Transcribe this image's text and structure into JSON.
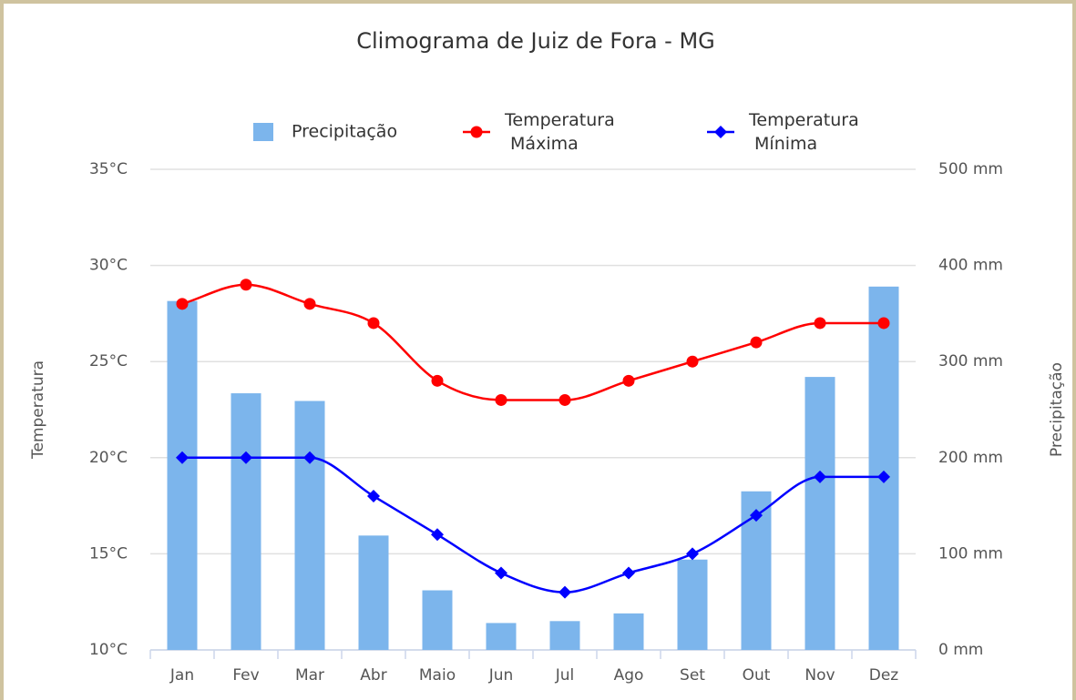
{
  "chart_data": {
    "type": "climograph",
    "title": "Climograma de Juiz de Fora - MG",
    "categories": [
      "Jan",
      "Fev",
      "Mar",
      "Abr",
      "Maio",
      "Jun",
      "Jul",
      "Ago",
      "Set",
      "Out",
      "Nov",
      "Dez"
    ],
    "series": [
      {
        "name": "Precipitação",
        "type": "bar",
        "axis": "y2",
        "color": "#7cb5ec",
        "values": [
          363,
          267,
          259,
          119,
          62,
          28,
          30,
          38,
          94,
          165,
          284,
          378
        ]
      },
      {
        "name": "Temperatura Máxima",
        "type": "line",
        "marker": "circle",
        "color": "#ff0000",
        "values": [
          28,
          29,
          28,
          27,
          24,
          23,
          23,
          24,
          25,
          26,
          27,
          27
        ]
      },
      {
        "name": "Temperatura Mínima",
        "type": "line",
        "marker": "diamond",
        "color": "#0000ff",
        "values": [
          20,
          20,
          20,
          18,
          16,
          14,
          13,
          14,
          15,
          17,
          19,
          19
        ]
      }
    ],
    "ylabel": "Temperatura",
    "y2label": "Precipitação",
    "ylim": [
      10,
      35
    ],
    "yticks": [
      {
        "value": 10,
        "label": "10°C"
      },
      {
        "value": 15,
        "label": "15°C"
      },
      {
        "value": 20,
        "label": "20°C"
      },
      {
        "value": 25,
        "label": "25°C"
      },
      {
        "value": 30,
        "label": "30°C"
      },
      {
        "value": 35,
        "label": "35°C"
      }
    ],
    "y2lim": [
      0,
      500
    ],
    "y2ticks": [
      {
        "value": 0,
        "label": "0 mm"
      },
      {
        "value": 100,
        "label": "100 mm"
      },
      {
        "value": 200,
        "label": "200 mm"
      },
      {
        "value": 300,
        "label": "300 mm"
      },
      {
        "value": 400,
        "label": "400 mm"
      },
      {
        "value": 500,
        "label": "500 mm"
      }
    ],
    "grid": true,
    "legend": "top"
  }
}
